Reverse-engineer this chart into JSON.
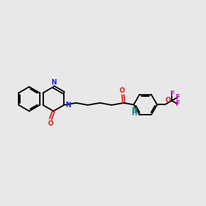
{
  "background_color": "#e8e8e8",
  "bond_color": "#000000",
  "n_color": "#2222dd",
  "o_color": "#dd2222",
  "f_color": "#cc00cc",
  "nh_color": "#008888",
  "figsize": [
    3.0,
    3.0
  ],
  "dpi": 100,
  "xlim": [
    0,
    10
  ],
  "ylim": [
    0,
    10
  ],
  "lw": 1.4,
  "fs": 7.0
}
